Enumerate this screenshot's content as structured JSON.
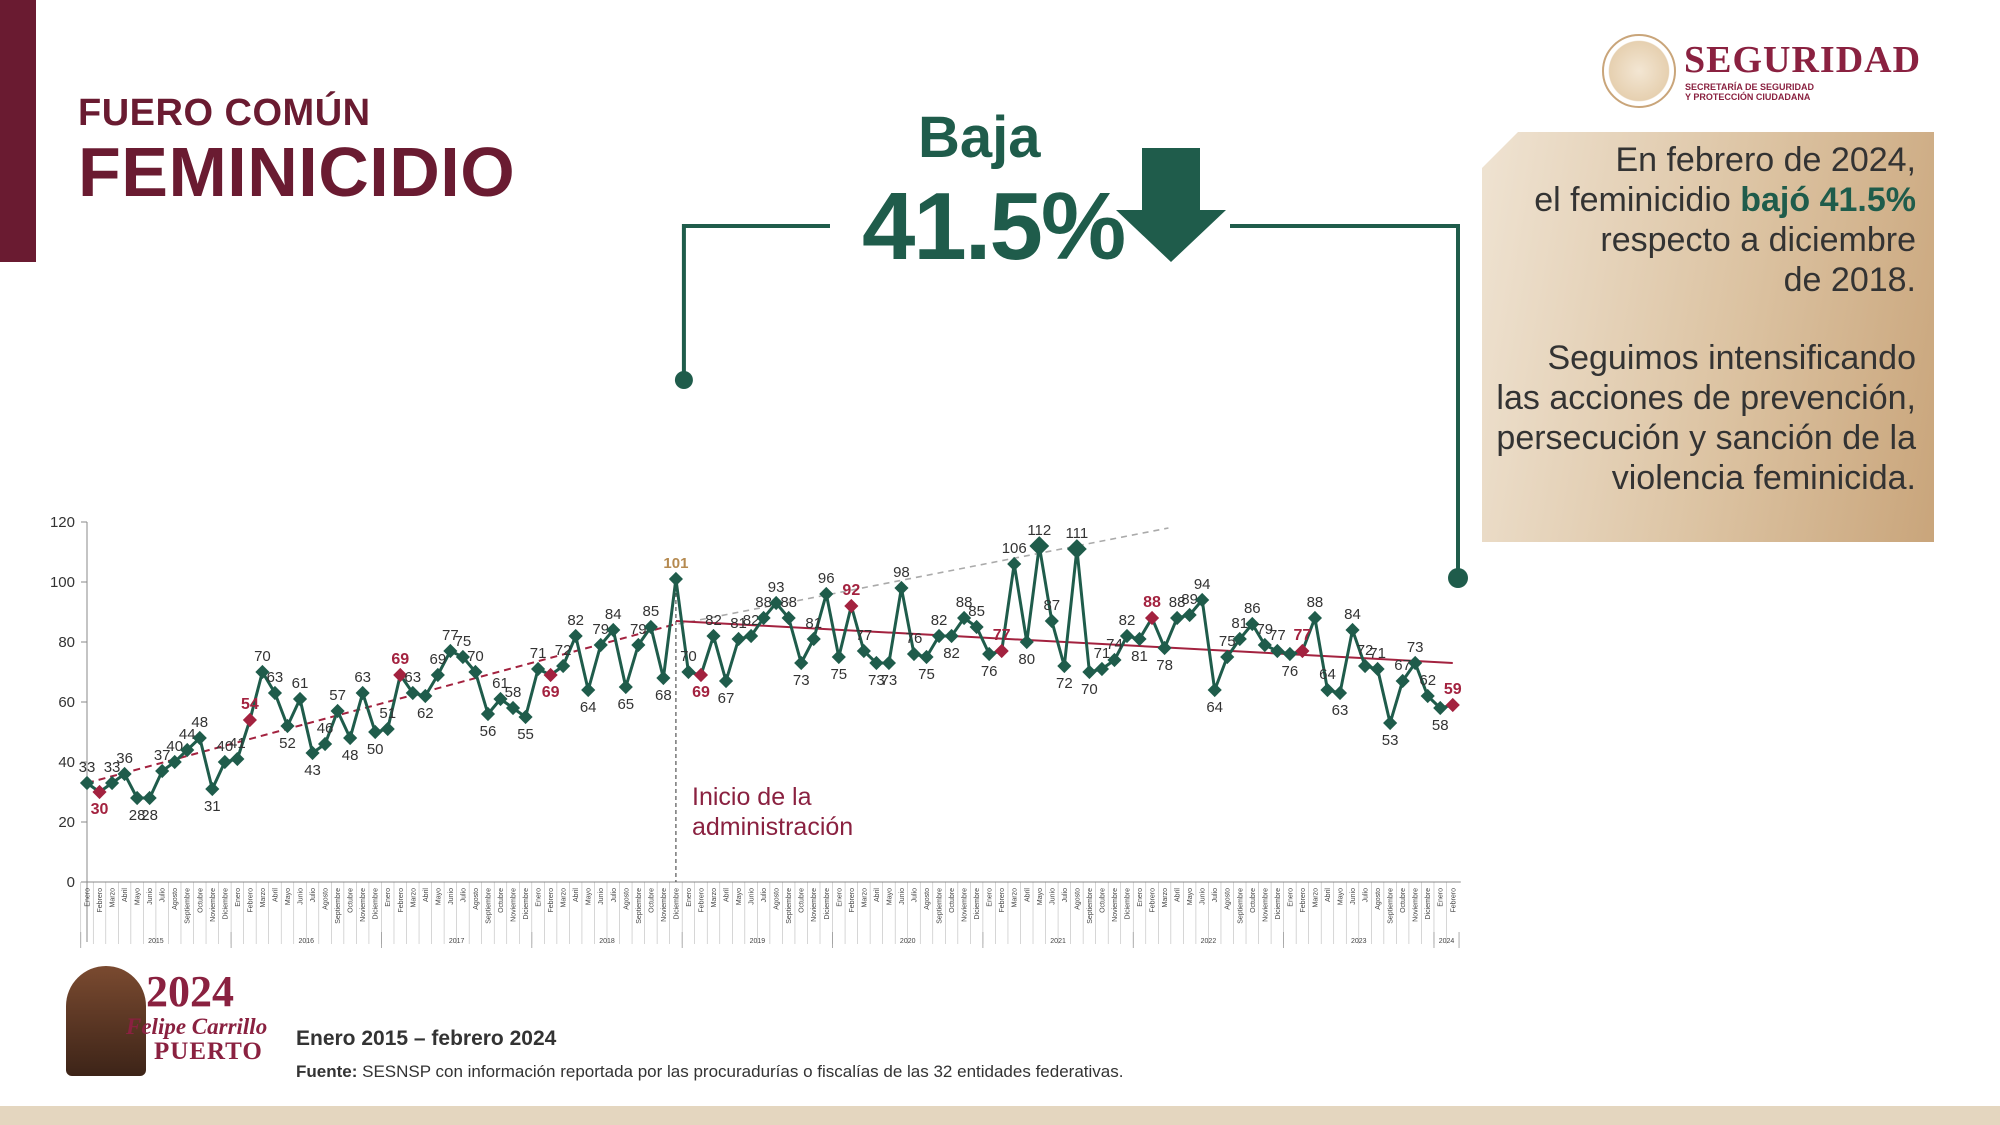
{
  "header": {
    "fuero": "FUERO COMÚN",
    "title": "FEMINICIDIO"
  },
  "logo": {
    "word": "SEGURIDAD",
    "sub1": "SECRETARÍA DE SEGURIDAD",
    "sub2": "Y PROTECCIÓN CIUDADANA"
  },
  "headline": {
    "label": "Baja",
    "value": "41.5%"
  },
  "sidebox": {
    "p1_a": "En febrero de 2024,",
    "p1_b": "el feminicidio ",
    "p1_bold": "bajó 41.5%",
    "p1_c": "respecto a diciembre",
    "p1_d": "de 2018.",
    "p2": "Seguimos intensificando las acciones de prevención, persecución y sanción de la violencia feminicida."
  },
  "annotation": {
    "line1": "Inicio de la",
    "line2": "administración"
  },
  "footer": {
    "period": "Enero 2015 – febrero 2024",
    "fuente_label": "Fuente:",
    "fuente_text": " SESNSP con información reportada por las procuradurías o fiscalías de las 32 entidades federativas."
  },
  "badge": {
    "year": "2024",
    "name": "Felipe Carrillo",
    "surname": "PUERTO"
  },
  "colors": {
    "series": "#1f5c4b",
    "highlight": "#a3223f",
    "trend_before": "#a3223f",
    "trend_after": "#a3223f",
    "projection": "#aaaaaa",
    "start_label": "#b58a50"
  },
  "chart_data": {
    "type": "line",
    "ylim": [
      0,
      120
    ],
    "yticks": [
      0,
      20,
      40,
      60,
      80,
      100,
      120
    ],
    "months": [
      "Enero",
      "Febrero",
      "Marzo",
      "Abril",
      "Mayo",
      "Junio",
      "Julio",
      "Agosto",
      "Septiembre",
      "Octubre",
      "Noviembre",
      "Diciembre"
    ],
    "years": [
      "2015",
      "2016",
      "2017",
      "2018",
      "2019",
      "2020",
      "2021",
      "2022",
      "2023",
      "2024"
    ],
    "values": [
      33,
      30,
      33,
      36,
      28,
      28,
      37,
      40,
      44,
      48,
      31,
      40,
      41,
      54,
      70,
      63,
      52,
      61,
      43,
      46,
      57,
      48,
      63,
      50,
      51,
      69,
      63,
      62,
      69,
      77,
      75,
      70,
      56,
      61,
      58,
      55,
      71,
      69,
      72,
      82,
      64,
      79,
      84,
      65,
      79,
      85,
      68,
      101,
      70,
      69,
      82,
      67,
      81,
      82,
      88,
      93,
      88,
      73,
      81,
      96,
      75,
      92,
      77,
      73,
      73,
      98,
      76,
      75,
      82,
      82,
      88,
      85,
      76,
      77,
      106,
      80,
      112,
      87,
      72,
      111,
      70,
      71,
      74,
      82,
      81,
      88,
      78,
      88,
      89,
      94,
      64,
      75,
      81,
      86,
      79,
      77,
      76,
      77,
      88,
      64,
      63,
      84,
      72,
      71,
      53,
      67,
      73,
      62,
      58,
      59
    ],
    "highlights": [
      1,
      13,
      25,
      37,
      49,
      61,
      73,
      85,
      97,
      109
    ],
    "admin_start_index": 47,
    "trend_before": {
      "start": 33,
      "end": 86
    },
    "trend_after": {
      "start": 87,
      "end": 73
    },
    "projection": {
      "start": 86,
      "end": 118
    }
  }
}
